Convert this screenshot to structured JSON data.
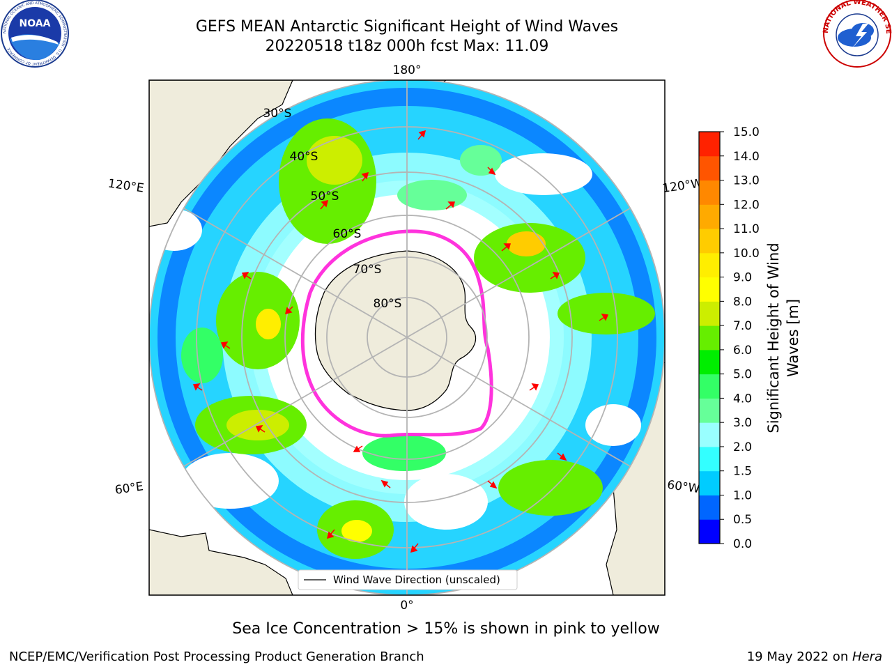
{
  "title": {
    "line1": "GEFS MEAN Antarctic Significant Height of Wind Waves",
    "line2": "20220518 t18z 000h fcst   Max: 11.09"
  },
  "logos": {
    "noaa_text": "NOAA",
    "noaa_ring": "NATIONAL OCEANIC AND ATMOSPHERIC ADMINISTRATION · U.S. DEPARTMENT OF COMMERCE",
    "nws_ring": "NATIONAL WEATHER SERVICE"
  },
  "map": {
    "projection": "south-polar-stereographic",
    "lon_labels": [
      "180°",
      "120°E",
      "120°W",
      "60°E",
      "60°W",
      "0°"
    ],
    "lat_labels": [
      "30°S",
      "40°S",
      "50°S",
      "60°S",
      "70°S",
      "80°S"
    ],
    "legend": "Wind Wave Direction (unscaled)",
    "colors": {
      "land": "#efecdc",
      "ocean_blank": "#ffffff",
      "grid": "#b4b4b4",
      "arrow": "#ff0000",
      "ice_edge": "#ff33dd"
    }
  },
  "colorbar": {
    "label_line1": "Significant Height of Wind",
    "label_line2": "Waves [m]",
    "ticks": [
      "0.0",
      "0.5",
      "1.0",
      "1.5",
      "2.0",
      "3.0",
      "4.0",
      "5.0",
      "6.0",
      "7.0",
      "8.0",
      "9.0",
      "10.0",
      "11.0",
      "12.0",
      "13.0",
      "14.0",
      "15.0"
    ],
    "colors": [
      "#0000ff",
      "#0066ff",
      "#00ccff",
      "#33ffff",
      "#99ffff",
      "#66ff99",
      "#33ff66",
      "#00ee00",
      "#66ee00",
      "#ccee00",
      "#ffff00",
      "#ffee00",
      "#ffcc00",
      "#ffaa00",
      "#ff8800",
      "#ff5500",
      "#ff2200"
    ]
  },
  "footer": {
    "note": "Sea Ice Concentration > 15% is shown in pink to yellow",
    "credit": "NCEP/EMC/Verification Post Processing Product Generation Branch",
    "date": "19 May 2022 on ",
    "machine": "Hera"
  }
}
